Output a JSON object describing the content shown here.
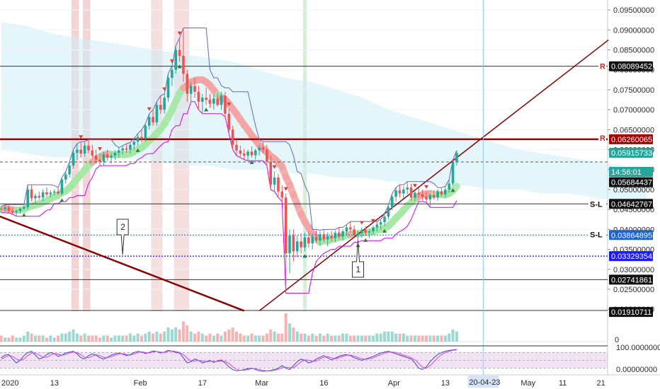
{
  "colors": {
    "up": "#26a69a",
    "down": "#ef5350",
    "trendline": "#8b0000",
    "resistance": "#a50000",
    "baseline": "#2e7d32",
    "ema_band": "#f4a3a3",
    "ema_band_green": "#a5e8a5",
    "cloud": "#cfeff5",
    "stoch_k": "#3f51b5",
    "stoch_d": "#e040fb",
    "support_blue": "#1a1aff"
  },
  "chart_data": {
    "type": "candlestick",
    "price_axis": {
      "ticks": [
        "0.09500000",
        "0.09000000",
        "0.08500000",
        "0.08000000",
        "0.07500000",
        "0.07000000",
        "0.06500000",
        "0.06000000",
        "0.05500000",
        "0.05000000",
        "0.04500000",
        "0.04000000",
        "0.03500000",
        "0.03000000",
        "0.02500000",
        "0.02000000"
      ],
      "range": [
        0.0195,
        0.0975
      ],
      "tags": [
        {
          "text": "0.08089452",
          "value": 0.08089,
          "bg": "#111111"
        },
        {
          "text": "0.06260065",
          "value": 0.0626,
          "bg": "#a50000"
        },
        {
          "text": "0.05915733",
          "value": 0.0592,
          "bg": "#26a69a"
        },
        {
          "text": "14:56:01",
          "value": 0.0569,
          "bg": "#26a69a",
          "offset": 14
        },
        {
          "text": "0.05684437",
          "value": 0.0568,
          "bg": "#111111",
          "offset": 28
        },
        {
          "text": "0.04642767",
          "value": 0.0464,
          "bg": "#111111"
        },
        {
          "text": "0.03864895",
          "value": 0.0386,
          "bg": "#1e63c8"
        },
        {
          "text": "0.03329354",
          "value": 0.0333,
          "bg": "#1a1aff"
        },
        {
          "text": "0.02741861",
          "value": 0.0274,
          "bg": "#111111"
        },
        {
          "text": "0.01910711",
          "value": 0.0193,
          "bg": "#111111"
        }
      ]
    },
    "level_labels": [
      {
        "text": "R",
        "value": 0.0809
      },
      {
        "text": "R",
        "value": 0.0629
      },
      {
        "text": "S-L",
        "value": 0.0464
      },
      {
        "text": "S-L",
        "value": 0.0387
      }
    ],
    "annotations": [
      {
        "text": "2",
        "bar": 32
      },
      {
        "text": "1",
        "bar": 94
      }
    ],
    "time_axis": {
      "labels": [
        {
          "text": "2020",
          "bar": 0
        },
        {
          "text": "13",
          "bar": 14
        },
        {
          "text": "Feb",
          "bar": 36
        },
        {
          "text": "17",
          "bar": 53
        },
        {
          "text": "Mar",
          "bar": 68
        },
        {
          "text": "16",
          "bar": 85
        },
        {
          "text": "Apr",
          "bar": 103
        },
        {
          "text": "13",
          "bar": 117
        },
        {
          "text": "May",
          "bar": 138
        },
        {
          "text": "11",
          "bar": 148
        },
        {
          "text": "21",
          "bar": 158
        }
      ],
      "current_label": "20-04-23",
      "current_bar": 127
    },
    "candles": [
      [
        0.0452,
        0.0458,
        0.0442,
        0.045
      ],
      [
        0.045,
        0.0462,
        0.0445,
        0.0455
      ],
      [
        0.0455,
        0.046,
        0.0441,
        0.0447
      ],
      [
        0.0447,
        0.0455,
        0.0438,
        0.0443
      ],
      [
        0.0443,
        0.045,
        0.0433,
        0.0446
      ],
      [
        0.0446,
        0.0455,
        0.044,
        0.0452
      ],
      [
        0.0452,
        0.046,
        0.0448,
        0.0456
      ],
      [
        0.0456,
        0.0512,
        0.045,
        0.05
      ],
      [
        0.05,
        0.051,
        0.047,
        0.0478
      ],
      [
        0.0478,
        0.049,
        0.0465,
        0.0484
      ],
      [
        0.0484,
        0.0495,
        0.0475,
        0.048
      ],
      [
        0.048,
        0.05,
        0.047,
        0.0493
      ],
      [
        0.0493,
        0.0505,
        0.0482,
        0.0488
      ],
      [
        0.0488,
        0.0498,
        0.048,
        0.0492
      ],
      [
        0.0492,
        0.05,
        0.0485,
        0.0495
      ],
      [
        0.0495,
        0.0505,
        0.0486,
        0.049
      ],
      [
        0.049,
        0.053,
        0.0485,
        0.0525
      ],
      [
        0.0525,
        0.0545,
        0.0515,
        0.0538
      ],
      [
        0.0538,
        0.057,
        0.053,
        0.056
      ],
      [
        0.056,
        0.06,
        0.0552,
        0.0592
      ],
      [
        0.0592,
        0.0615,
        0.0575,
        0.06
      ],
      [
        0.06,
        0.062,
        0.058,
        0.059
      ],
      [
        0.059,
        0.0618,
        0.0582,
        0.061
      ],
      [
        0.061,
        0.0625,
        0.059,
        0.0598
      ],
      [
        0.0598,
        0.0612,
        0.058,
        0.0585
      ],
      [
        0.0585,
        0.06,
        0.0565,
        0.0575
      ],
      [
        0.0575,
        0.059,
        0.056,
        0.057
      ],
      [
        0.057,
        0.0595,
        0.056,
        0.0588
      ],
      [
        0.0588,
        0.06,
        0.0572,
        0.058
      ],
      [
        0.058,
        0.0592,
        0.0565,
        0.0585
      ],
      [
        0.0585,
        0.0598,
        0.0575,
        0.0592
      ],
      [
        0.0592,
        0.0605,
        0.058,
        0.0598
      ],
      [
        0.0598,
        0.061,
        0.0588,
        0.0603
      ],
      [
        0.0603,
        0.0615,
        0.0592,
        0.06
      ],
      [
        0.06,
        0.0618,
        0.059,
        0.0612
      ],
      [
        0.0612,
        0.0628,
        0.06,
        0.062
      ],
      [
        0.062,
        0.064,
        0.061,
        0.0632
      ],
      [
        0.0632,
        0.065,
        0.0618,
        0.0628
      ],
      [
        0.0628,
        0.0665,
        0.062,
        0.066
      ],
      [
        0.066,
        0.069,
        0.065,
        0.0682
      ],
      [
        0.0682,
        0.07,
        0.066,
        0.0668
      ],
      [
        0.0668,
        0.072,
        0.066,
        0.0712
      ],
      [
        0.0712,
        0.0735,
        0.069,
        0.07
      ],
      [
        0.07,
        0.074,
        0.069,
        0.073
      ],
      [
        0.073,
        0.079,
        0.072,
        0.078
      ],
      [
        0.078,
        0.081,
        0.076,
        0.08
      ],
      [
        0.08,
        0.086,
        0.079,
        0.085
      ],
      [
        0.085,
        0.088,
        0.082,
        0.0835
      ],
      [
        0.0835,
        0.0905,
        0.077,
        0.079
      ],
      [
        0.079,
        0.08,
        0.072,
        0.074
      ],
      [
        0.074,
        0.077,
        0.072,
        0.076
      ],
      [
        0.076,
        0.078,
        0.073,
        0.0745
      ],
      [
        0.0745,
        0.076,
        0.07,
        0.072
      ],
      [
        0.072,
        0.074,
        0.069,
        0.073
      ],
      [
        0.073,
        0.0755,
        0.0712,
        0.0725
      ],
      [
        0.0725,
        0.074,
        0.0705,
        0.0715
      ],
      [
        0.0715,
        0.0738,
        0.07,
        0.0728
      ],
      [
        0.0728,
        0.0742,
        0.0708,
        0.0712
      ],
      [
        0.0712,
        0.0745,
        0.07,
        0.0735
      ],
      [
        0.0735,
        0.0745,
        0.0682,
        0.069
      ],
      [
        0.069,
        0.0702,
        0.064,
        0.065
      ],
      [
        0.065,
        0.066,
        0.06,
        0.0612
      ],
      [
        0.0612,
        0.0625,
        0.0585,
        0.0598
      ],
      [
        0.0598,
        0.061,
        0.058,
        0.059
      ],
      [
        0.059,
        0.0602,
        0.0575,
        0.0585
      ],
      [
        0.0585,
        0.06,
        0.0572,
        0.0595
      ],
      [
        0.0595,
        0.0608,
        0.058,
        0.0586
      ],
      [
        0.0586,
        0.0602,
        0.0575,
        0.0598
      ],
      [
        0.0598,
        0.0612,
        0.0585,
        0.0605
      ],
      [
        0.0605,
        0.062,
        0.059,
        0.06
      ],
      [
        0.06,
        0.0612,
        0.056,
        0.057
      ],
      [
        0.057,
        0.0585,
        0.05,
        0.0512
      ],
      [
        0.0512,
        0.0545,
        0.0495,
        0.053
      ],
      [
        0.053,
        0.054,
        0.048,
        0.0495
      ],
      [
        0.0495,
        0.051,
        0.047,
        0.048
      ],
      [
        0.048,
        0.049,
        0.024,
        0.034
      ],
      [
        0.034,
        0.04,
        0.029,
        0.0385
      ],
      [
        0.0385,
        0.04,
        0.032,
        0.0345
      ],
      [
        0.0345,
        0.0385,
        0.033,
        0.037
      ],
      [
        0.037,
        0.039,
        0.034,
        0.0355
      ],
      [
        0.0355,
        0.0392,
        0.0345,
        0.038
      ],
      [
        0.038,
        0.0395,
        0.0355,
        0.0365
      ],
      [
        0.0365,
        0.039,
        0.035,
        0.0382
      ],
      [
        0.0382,
        0.0398,
        0.0365,
        0.0372
      ],
      [
        0.0372,
        0.0395,
        0.036,
        0.0388
      ],
      [
        0.0388,
        0.04,
        0.0368,
        0.0375
      ],
      [
        0.0375,
        0.0392,
        0.0358,
        0.0384
      ],
      [
        0.0384,
        0.0396,
        0.037,
        0.0378
      ],
      [
        0.0378,
        0.0398,
        0.0368,
        0.0392
      ],
      [
        0.0392,
        0.0405,
        0.0375,
        0.0382
      ],
      [
        0.0382,
        0.04,
        0.0372,
        0.0395
      ],
      [
        0.0395,
        0.0412,
        0.0385,
        0.0405
      ],
      [
        0.0405,
        0.042,
        0.0392,
        0.04
      ],
      [
        0.04,
        0.041,
        0.0378,
        0.0385
      ],
      [
        0.0385,
        0.0398,
        0.0372,
        0.039
      ],
      [
        0.039,
        0.0405,
        0.038,
        0.0398
      ],
      [
        0.0398,
        0.0408,
        0.0385,
        0.0392
      ],
      [
        0.0392,
        0.04,
        0.0378,
        0.0395
      ],
      [
        0.0395,
        0.041,
        0.0388,
        0.0405
      ],
      [
        0.0405,
        0.042,
        0.0395,
        0.0412
      ],
      [
        0.0412,
        0.0425,
        0.04,
        0.0418
      ],
      [
        0.0418,
        0.044,
        0.0408,
        0.0432
      ],
      [
        0.0432,
        0.046,
        0.0425,
        0.0455
      ],
      [
        0.0455,
        0.049,
        0.0448,
        0.0482
      ],
      [
        0.0482,
        0.0505,
        0.047,
        0.0498
      ],
      [
        0.0498,
        0.0512,
        0.048,
        0.049
      ],
      [
        0.049,
        0.0508,
        0.0478,
        0.05
      ],
      [
        0.05,
        0.052,
        0.0488,
        0.0505
      ],
      [
        0.0505,
        0.0515,
        0.0472,
        0.048
      ],
      [
        0.048,
        0.0498,
        0.047,
        0.0492
      ],
      [
        0.0492,
        0.0505,
        0.048,
        0.0488
      ],
      [
        0.0488,
        0.05,
        0.0472,
        0.0482
      ],
      [
        0.0482,
        0.0495,
        0.0468,
        0.0475
      ],
      [
        0.0475,
        0.049,
        0.0455,
        0.0486
      ],
      [
        0.0486,
        0.0498,
        0.0475,
        0.048
      ],
      [
        0.048,
        0.05,
        0.0472,
        0.0495
      ],
      [
        0.0495,
        0.0505,
        0.0482,
        0.0488
      ],
      [
        0.0488,
        0.0508,
        0.048,
        0.05
      ],
      [
        0.05,
        0.0525,
        0.0492,
        0.0515
      ],
      [
        0.0515,
        0.0575,
        0.051,
        0.0568
      ],
      [
        0.0568,
        0.0598,
        0.056,
        0.0592
      ]
    ],
    "volume": [
      3,
      2,
      2,
      3,
      2,
      2,
      3,
      5,
      4,
      3,
      3,
      3,
      2,
      3,
      2,
      3,
      4,
      4,
      5,
      6,
      4,
      3,
      4,
      3,
      3,
      3,
      2,
      3,
      3,
      2,
      3,
      3,
      3,
      3,
      4,
      3,
      4,
      3,
      4,
      5,
      4,
      5,
      4,
      5,
      7,
      6,
      7,
      6,
      10,
      8,
      5,
      4,
      5,
      4,
      3,
      4,
      3,
      4,
      3,
      5,
      6,
      7,
      5,
      4,
      3,
      3,
      4,
      3,
      3,
      3,
      4,
      6,
      5,
      4,
      4,
      14,
      9,
      7,
      5,
      4,
      4,
      3,
      4,
      3,
      4,
      3,
      4,
      3,
      3,
      3,
      4,
      4,
      3,
      3,
      3,
      3,
      3,
      3,
      3,
      4,
      4,
      5,
      5,
      5,
      4,
      4,
      4,
      3,
      3,
      3,
      3,
      3,
      3,
      3,
      3,
      3,
      3,
      3,
      4,
      6,
      5
    ],
    "stoch_k": [
      60,
      70,
      72,
      55,
      40,
      50,
      68,
      80,
      85,
      70,
      55,
      60,
      72,
      80,
      76,
      65,
      70,
      78,
      82,
      85,
      75,
      60,
      55,
      68,
      75,
      70,
      60,
      55,
      62,
      70,
      75,
      78,
      74,
      68,
      72,
      80,
      85,
      82,
      76,
      80,
      86,
      84,
      78,
      82,
      88,
      85,
      80,
      78,
      60,
      40,
      45,
      55,
      50,
      40,
      45,
      50,
      42,
      48,
      52,
      40,
      25,
      15,
      10,
      12,
      15,
      18,
      20,
      15,
      10,
      8,
      10,
      12,
      15,
      20,
      30,
      20,
      15,
      30,
      45,
      55,
      50,
      40,
      45,
      55,
      62,
      68,
      60,
      52,
      58,
      65,
      70,
      72,
      68,
      60,
      55,
      50,
      55,
      60,
      65,
      72,
      78,
      82,
      85,
      80,
      75,
      70,
      65,
      60,
      55,
      40,
      20,
      15,
      25,
      45,
      60,
      72,
      80,
      85,
      88,
      90,
      92
    ],
    "stoch_d": [
      55,
      62,
      68,
      65,
      55,
      50,
      55,
      68,
      78,
      78,
      70,
      62,
      62,
      70,
      76,
      74,
      70,
      72,
      78,
      82,
      80,
      72,
      62,
      60,
      66,
      72,
      68,
      62,
      60,
      64,
      70,
      75,
      76,
      72,
      70,
      75,
      80,
      83,
      80,
      78,
      82,
      84,
      82,
      80,
      84,
      86,
      84,
      80,
      72,
      58,
      48,
      48,
      50,
      48,
      44,
      46,
      46,
      46,
      48,
      46,
      38,
      26,
      16,
      12,
      12,
      15,
      18,
      18,
      15,
      12,
      10,
      10,
      12,
      16,
      22,
      24,
      22,
      22,
      32,
      45,
      52,
      50,
      46,
      48,
      56,
      62,
      64,
      60,
      56,
      60,
      65,
      70,
      70,
      66,
      61,
      56,
      54,
      56,
      60,
      66,
      72,
      78,
      82,
      82,
      80,
      76,
      70,
      66,
      60,
      52,
      38,
      24,
      20,
      30,
      44,
      60,
      72,
      80,
      85,
      88,
      90
    ],
    "stoch_axis": [
      "100.00000000",
      "0.00000000"
    ]
  }
}
